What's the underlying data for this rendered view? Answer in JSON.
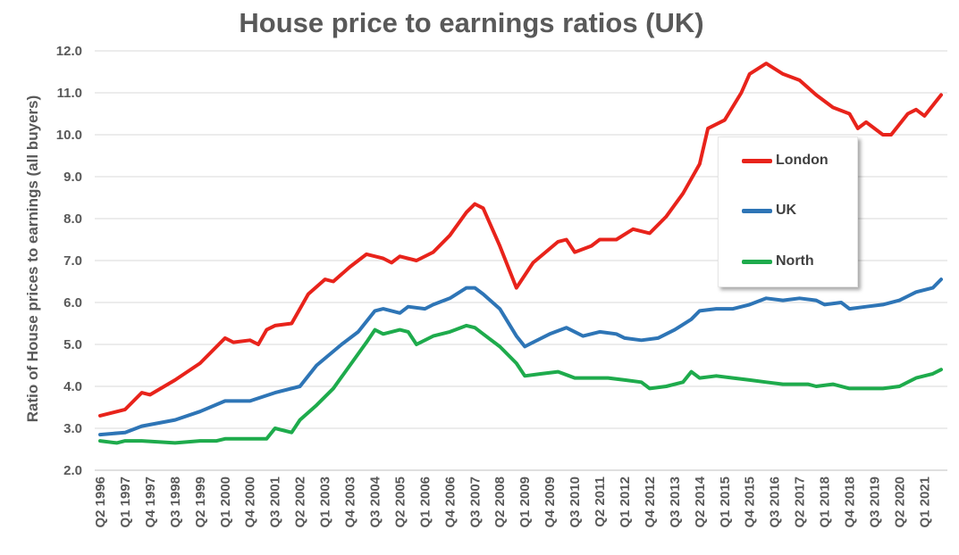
{
  "chart_data": {
    "type": "line",
    "title": "House price to earnings ratios (UK)",
    "ylabel": "Ratio of House prices to earnings (all buyers)",
    "xlabel": "",
    "ylim": [
      2.0,
      12.0
    ],
    "yticks": [
      "2.0",
      "3.0",
      "4.0",
      "5.0",
      "6.0",
      "7.0",
      "8.0",
      "9.0",
      "10.0",
      "11.0",
      "12.0"
    ],
    "xticks": [
      "Q2 1996",
      "Q1 1997",
      "Q4 1997",
      "Q3 1998",
      "Q2 1999",
      "Q1 2000",
      "Q4 2000",
      "Q3 2001",
      "Q2 2002",
      "Q1 2003",
      "Q4 2003",
      "Q3 2004",
      "Q2 2005",
      "Q1 2006",
      "Q4 2006",
      "Q3 2007",
      "Q2 2008",
      "Q1 2009",
      "Q4 2009",
      "Q3 2010",
      "Q2 2011",
      "Q1 2012",
      "Q4 2012",
      "Q3 2013",
      "Q2 2014",
      "Q1 2015",
      "Q4 2015",
      "Q3 2016",
      "Q2 2017",
      "Q1 2018",
      "Q4 2018",
      "Q3 2019",
      "Q2 2020",
      "Q1 2021"
    ],
    "grid": true,
    "legend_position": "right",
    "series": [
      {
        "name": "London",
        "color": "#e8231b",
        "points": [
          [
            "Q2 1996",
            3.3
          ],
          [
            "Q1 1997",
            3.45
          ],
          [
            "Q3 1997",
            3.85
          ],
          [
            "Q4 1997",
            3.8
          ],
          [
            "Q3 1998",
            4.15
          ],
          [
            "Q2 1999",
            4.55
          ],
          [
            "Q1 2000",
            5.15
          ],
          [
            "Q2 2000",
            5.05
          ],
          [
            "Q4 2000",
            5.1
          ],
          [
            "Q1 2001",
            5.0
          ],
          [
            "Q2 2001",
            5.35
          ],
          [
            "Q3 2001",
            5.45
          ],
          [
            "Q1 2002",
            5.5
          ],
          [
            "Q3 2002",
            6.2
          ],
          [
            "Q1 2003",
            6.55
          ],
          [
            "Q2 2003",
            6.5
          ],
          [
            "Q4 2003",
            6.85
          ],
          [
            "Q2 2004",
            7.15
          ],
          [
            "Q4 2004",
            7.05
          ],
          [
            "Q1 2005",
            6.95
          ],
          [
            "Q2 2005",
            7.1
          ],
          [
            "Q4 2005",
            7.0
          ],
          [
            "Q2 2006",
            7.2
          ],
          [
            "Q4 2006",
            7.6
          ],
          [
            "Q2 2007",
            8.15
          ],
          [
            "Q3 2007",
            8.35
          ],
          [
            "Q4 2007",
            8.25
          ],
          [
            "Q2 2008",
            7.35
          ],
          [
            "Q4 2008",
            6.35
          ],
          [
            "Q2 2009",
            6.95
          ],
          [
            "Q1 2010",
            7.45
          ],
          [
            "Q2 2010",
            7.5
          ],
          [
            "Q3 2010",
            7.2
          ],
          [
            "Q1 2011",
            7.35
          ],
          [
            "Q2 2011",
            7.5
          ],
          [
            "Q4 2011",
            7.5
          ],
          [
            "Q2 2012",
            7.75
          ],
          [
            "Q4 2012",
            7.65
          ],
          [
            "Q2 2013",
            8.05
          ],
          [
            "Q4 2013",
            8.6
          ],
          [
            "Q2 2014",
            9.3
          ],
          [
            "Q3 2014",
            10.15
          ],
          [
            "Q1 2015",
            10.35
          ],
          [
            "Q3 2015",
            11.0
          ],
          [
            "Q4 2015",
            11.45
          ],
          [
            "Q2 2016",
            11.7
          ],
          [
            "Q4 2016",
            11.45
          ],
          [
            "Q2 2017",
            11.3
          ],
          [
            "Q4 2017",
            10.95
          ],
          [
            "Q2 2018",
            10.65
          ],
          [
            "Q4 2018",
            10.5
          ],
          [
            "Q1 2019",
            10.15
          ],
          [
            "Q2 2019",
            10.3
          ],
          [
            "Q4 2019",
            10.0
          ],
          [
            "Q1 2020",
            10.0
          ],
          [
            "Q3 2020",
            10.5
          ],
          [
            "Q4 2020",
            10.6
          ],
          [
            "Q1 2021",
            10.45
          ],
          [
            "Q3 2021",
            10.95
          ]
        ]
      },
      {
        "name": "UK",
        "color": "#2e75b6",
        "points": [
          [
            "Q2 1996",
            2.85
          ],
          [
            "Q1 1997",
            2.9
          ],
          [
            "Q3 1997",
            3.05
          ],
          [
            "Q3 1998",
            3.2
          ],
          [
            "Q2 1999",
            3.4
          ],
          [
            "Q1 2000",
            3.65
          ],
          [
            "Q4 2000",
            3.65
          ],
          [
            "Q3 2001",
            3.85
          ],
          [
            "Q2 2002",
            4.0
          ],
          [
            "Q4 2002",
            4.5
          ],
          [
            "Q3 2003",
            5.0
          ],
          [
            "Q1 2004",
            5.3
          ],
          [
            "Q3 2004",
            5.8
          ],
          [
            "Q4 2004",
            5.85
          ],
          [
            "Q2 2005",
            5.75
          ],
          [
            "Q3 2005",
            5.9
          ],
          [
            "Q1 2006",
            5.85
          ],
          [
            "Q2 2006",
            5.95
          ],
          [
            "Q4 2006",
            6.1
          ],
          [
            "Q2 2007",
            6.35
          ],
          [
            "Q3 2007",
            6.35
          ],
          [
            "Q4 2007",
            6.2
          ],
          [
            "Q2 2008",
            5.85
          ],
          [
            "Q4 2008",
            5.2
          ],
          [
            "Q1 2009",
            4.95
          ],
          [
            "Q2 2009",
            5.05
          ],
          [
            "Q4 2009",
            5.25
          ],
          [
            "Q2 2010",
            5.4
          ],
          [
            "Q3 2010",
            5.3
          ],
          [
            "Q4 2010",
            5.2
          ],
          [
            "Q2 2011",
            5.3
          ],
          [
            "Q4 2011",
            5.25
          ],
          [
            "Q1 2012",
            5.15
          ],
          [
            "Q3 2012",
            5.1
          ],
          [
            "Q1 2013",
            5.15
          ],
          [
            "Q3 2013",
            5.35
          ],
          [
            "Q1 2014",
            5.6
          ],
          [
            "Q2 2014",
            5.8
          ],
          [
            "Q4 2014",
            5.85
          ],
          [
            "Q2 2015",
            5.85
          ],
          [
            "Q4 2015",
            5.95
          ],
          [
            "Q2 2016",
            6.1
          ],
          [
            "Q4 2016",
            6.05
          ],
          [
            "Q2 2017",
            6.1
          ],
          [
            "Q4 2017",
            6.05
          ],
          [
            "Q1 2018",
            5.95
          ],
          [
            "Q3 2018",
            6.0
          ],
          [
            "Q4 2018",
            5.85
          ],
          [
            "Q2 2019",
            5.9
          ],
          [
            "Q4 2019",
            5.95
          ],
          [
            "Q2 2020",
            6.05
          ],
          [
            "Q4 2020",
            6.25
          ],
          [
            "Q2 2021",
            6.35
          ],
          [
            "Q3 2021",
            6.55
          ]
        ]
      },
      {
        "name": "North",
        "color": "#1eab4c",
        "points": [
          [
            "Q2 1996",
            2.7
          ],
          [
            "Q4 1996",
            2.65
          ],
          [
            "Q1 1997",
            2.7
          ],
          [
            "Q3 1997",
            2.7
          ],
          [
            "Q3 1998",
            2.65
          ],
          [
            "Q2 1999",
            2.7
          ],
          [
            "Q4 1999",
            2.7
          ],
          [
            "Q1 2000",
            2.75
          ],
          [
            "Q4 2000",
            2.75
          ],
          [
            "Q2 2001",
            2.75
          ],
          [
            "Q3 2001",
            3.0
          ],
          [
            "Q1 2002",
            2.9
          ],
          [
            "Q2 2002",
            3.2
          ],
          [
            "Q4 2002",
            3.55
          ],
          [
            "Q2 2003",
            3.95
          ],
          [
            "Q4 2003",
            4.5
          ],
          [
            "Q2 2004",
            5.05
          ],
          [
            "Q3 2004",
            5.35
          ],
          [
            "Q4 2004",
            5.25
          ],
          [
            "Q2 2005",
            5.35
          ],
          [
            "Q3 2005",
            5.3
          ],
          [
            "Q4 2005",
            5.0
          ],
          [
            "Q2 2006",
            5.2
          ],
          [
            "Q4 2006",
            5.3
          ],
          [
            "Q2 2007",
            5.45
          ],
          [
            "Q3 2007",
            5.4
          ],
          [
            "Q4 2007",
            5.25
          ],
          [
            "Q2 2008",
            4.95
          ],
          [
            "Q4 2008",
            4.55
          ],
          [
            "Q1 2009",
            4.25
          ],
          [
            "Q3 2009",
            4.3
          ],
          [
            "Q1 2010",
            4.35
          ],
          [
            "Q3 2010",
            4.2
          ],
          [
            "Q1 2011",
            4.2
          ],
          [
            "Q3 2011",
            4.2
          ],
          [
            "Q1 2012",
            4.15
          ],
          [
            "Q3 2012",
            4.1
          ],
          [
            "Q4 2012",
            3.95
          ],
          [
            "Q2 2013",
            4.0
          ],
          [
            "Q4 2013",
            4.1
          ],
          [
            "Q1 2014",
            4.35
          ],
          [
            "Q2 2014",
            4.2
          ],
          [
            "Q4 2014",
            4.25
          ],
          [
            "Q2 2015",
            4.2
          ],
          [
            "Q4 2015",
            4.15
          ],
          [
            "Q2 2016",
            4.1
          ],
          [
            "Q4 2016",
            4.05
          ],
          [
            "Q2 2017",
            4.05
          ],
          [
            "Q3 2017",
            4.05
          ],
          [
            "Q4 2017",
            4.0
          ],
          [
            "Q2 2018",
            4.05
          ],
          [
            "Q4 2018",
            3.95
          ],
          [
            "Q2 2019",
            3.95
          ],
          [
            "Q4 2019",
            3.95
          ],
          [
            "Q2 2020",
            4.0
          ],
          [
            "Q4 2020",
            4.2
          ],
          [
            "Q2 2021",
            4.3
          ],
          [
            "Q3 2021",
            4.4
          ]
        ]
      }
    ]
  }
}
